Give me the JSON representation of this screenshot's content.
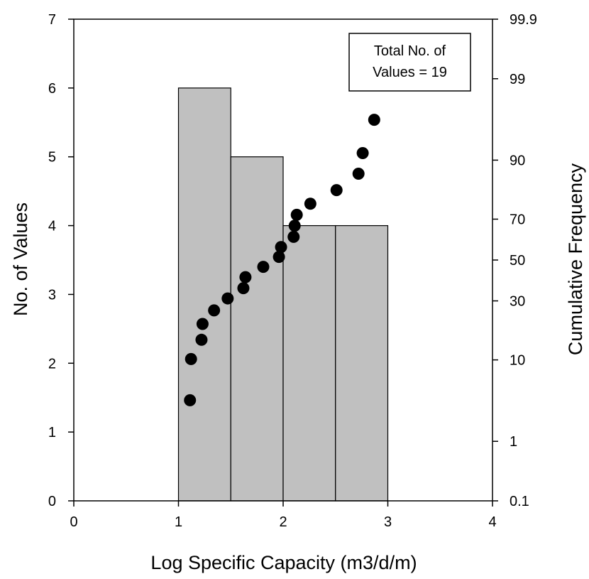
{
  "chart_data": {
    "type": "bar",
    "xlabel": "Log Specific Capacity (m3/d/m)",
    "ylabel": "No. of Values",
    "y2label": "Cumulative Frequency",
    "xlim": [
      0,
      4
    ],
    "ylim": [
      0,
      7
    ],
    "x_ticks": [
      "0",
      "1",
      "2",
      "3",
      "4"
    ],
    "y_ticks": [
      "0",
      "1",
      "2",
      "3",
      "4",
      "5",
      "6",
      "7"
    ],
    "y2_scale": "probability",
    "y2_ticks": [
      "0.1",
      "1",
      "10",
      "30",
      "50",
      "70",
      "90",
      "99",
      "99.9"
    ],
    "annotation": [
      "Total No. of",
      "Values = 19"
    ],
    "bar_color": "#c0c0c0",
    "bins": [
      {
        "start": 1.0,
        "end": 1.5,
        "count": 6
      },
      {
        "start": 1.5,
        "end": 2.0,
        "count": 5
      },
      {
        "start": 2.0,
        "end": 2.5,
        "count": 4
      },
      {
        "start": 2.5,
        "end": 3.0,
        "count": 4
      }
    ],
    "cumulative_series": {
      "x": [
        1.11,
        1.12,
        1.22,
        1.23,
        1.34,
        1.47,
        1.62,
        1.64,
        1.81,
        1.96,
        1.98,
        2.1,
        2.11,
        2.13,
        2.26,
        2.51,
        2.72,
        2.76,
        2.87
      ],
      "y": [
        3.6,
        10.2,
        15.3,
        20.6,
        25.9,
        31.1,
        35.9,
        41.3,
        46.5,
        51.6,
        56.6,
        61.7,
        67.0,
        71.9,
        76.5,
        81.5,
        86.6,
        91.5,
        96.4
      ]
    }
  }
}
